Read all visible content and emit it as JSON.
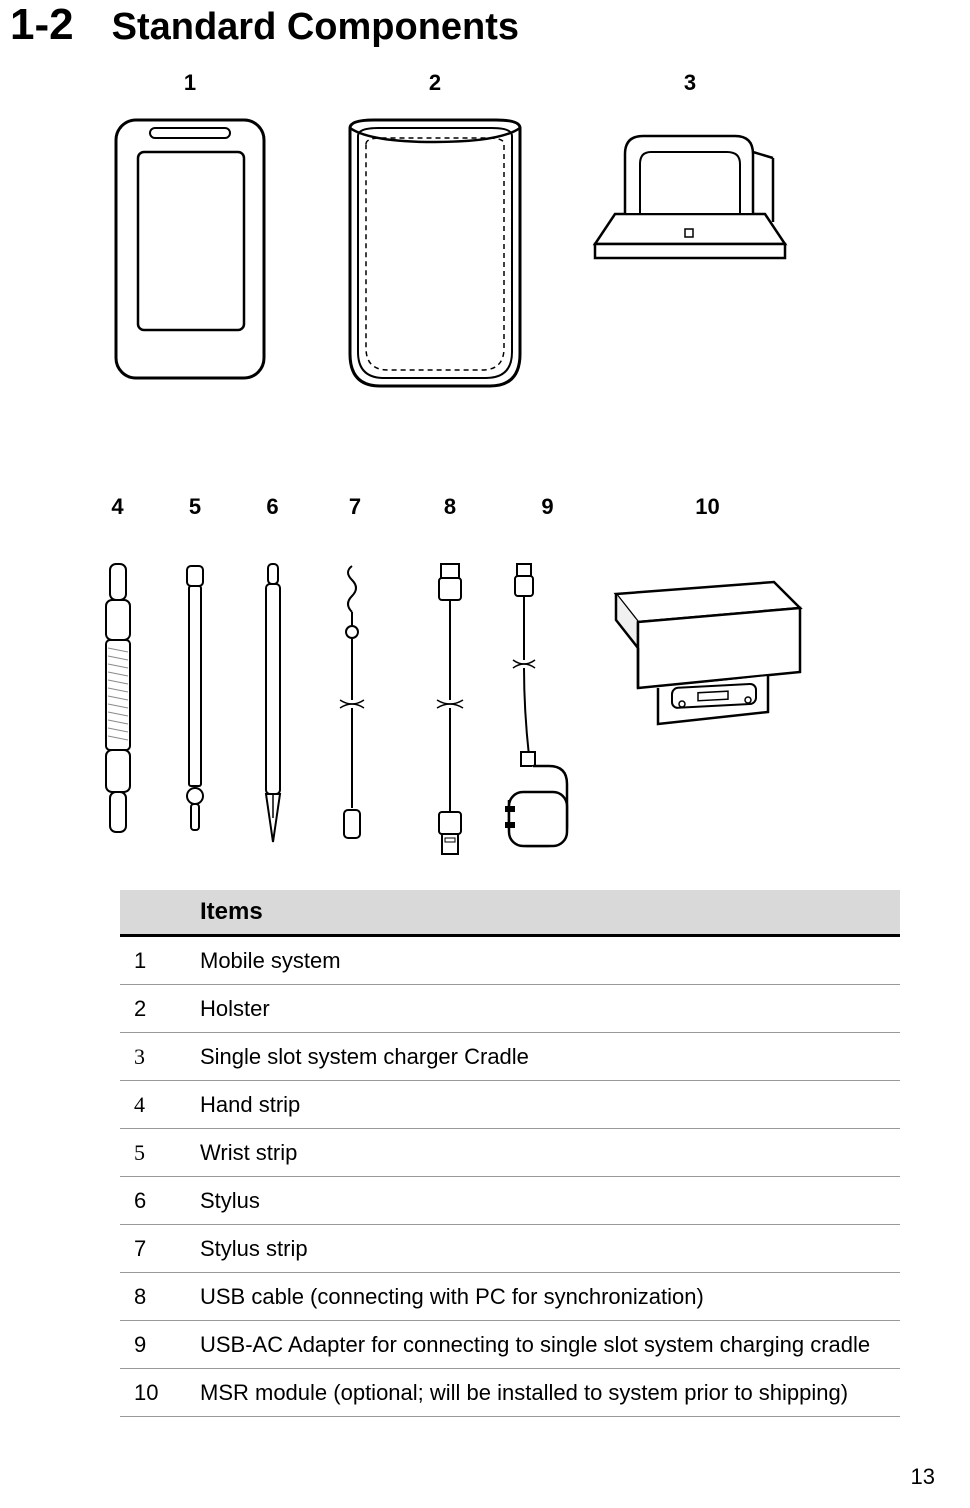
{
  "heading": {
    "num": "1-2",
    "title": "Standard Components"
  },
  "figure": {
    "row1_labels": [
      "1",
      "2",
      "3"
    ],
    "row2_labels": [
      "4",
      "5",
      "6",
      "7",
      "8",
      "9",
      "10"
    ]
  },
  "table": {
    "header": "Items",
    "rows": [
      {
        "n": "1",
        "serif": false,
        "item": "Mobile system"
      },
      {
        "n": "2",
        "serif": false,
        "item": "Holster"
      },
      {
        "n": "3",
        "serif": true,
        "item": "Single slot system charger Cradle"
      },
      {
        "n": "4",
        "serif": true,
        "item": "Hand strip"
      },
      {
        "n": "5",
        "serif": true,
        "item": "Wrist strip"
      },
      {
        "n": "6",
        "serif": false,
        "item": "Stylus"
      },
      {
        "n": "7",
        "serif": false,
        "item": "Stylus strip"
      },
      {
        "n": "8",
        "serif": false,
        "item": "USB cable (connecting with PC for synchronization)"
      },
      {
        "n": "9",
        "serif": false,
        "item": "USB-AC Adapter for connecting to single slot system charging cradle"
      },
      {
        "n": "10",
        "serif": false,
        "item": "MSR module (optional; will be installed to system prior to shipping)"
      }
    ]
  },
  "page_number": "13",
  "colors": {
    "stroke": "#000000",
    "light": "#888888",
    "fill_light": "#f5f5f5",
    "header_bg": "#d9d9d9"
  }
}
